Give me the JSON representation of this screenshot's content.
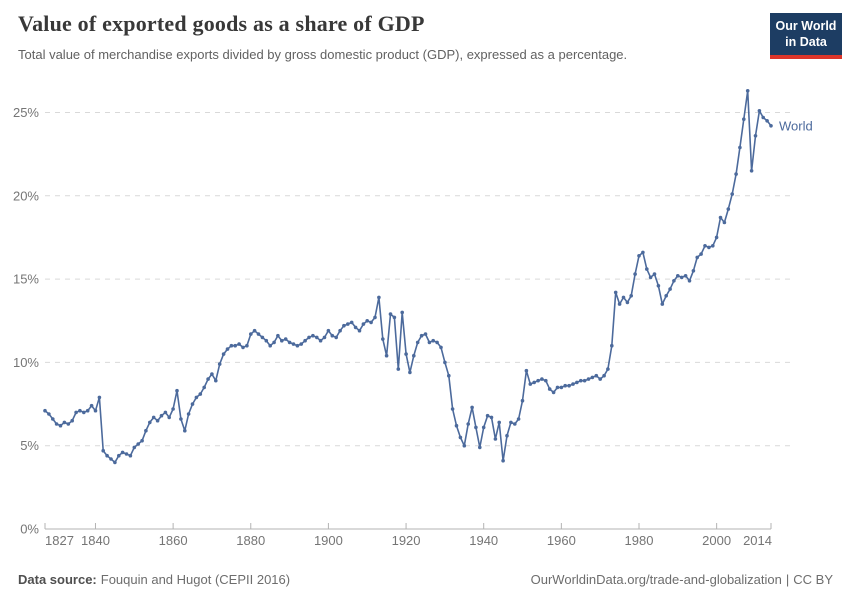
{
  "header": {
    "title": "Value of exported goods as a share of GDP",
    "subtitle": "Total value of merchandise exports divided by gross domestic product (GDP), expressed as a percentage."
  },
  "logo": {
    "line1": "Our World",
    "line2": "in Data",
    "bg_color": "#1d3d63",
    "accent_color": "#dd352a"
  },
  "chart_data": {
    "type": "line",
    "title": "Value of exported goods as a share of GDP",
    "series_label": "World",
    "unit": "%",
    "line_color": "#4c6a9c",
    "grid": "horizontal dashed",
    "legend_position": "end-of-line label",
    "xlim": [
      1827,
      2014
    ],
    "ylim": [
      0,
      27
    ],
    "x_ticks": [
      1827,
      1840,
      1860,
      1880,
      1900,
      1920,
      1940,
      1960,
      1980,
      2000,
      2014
    ],
    "x_tick_labels": [
      "1827",
      "1840",
      "1860",
      "1880",
      "1900",
      "1920",
      "1940",
      "1960",
      "1980",
      "2000",
      "2014"
    ],
    "y_ticks": [
      0,
      5,
      10,
      15,
      20,
      25
    ],
    "y_tick_labels": [
      "0%",
      "5%",
      "10%",
      "15%",
      "20%",
      "25%"
    ],
    "year_start": 1827,
    "years": [
      1827,
      1828,
      1829,
      1830,
      1831,
      1832,
      1833,
      1834,
      1835,
      1836,
      1837,
      1838,
      1839,
      1840,
      1841,
      1842,
      1843,
      1844,
      1845,
      1846,
      1847,
      1848,
      1849,
      1850,
      1851,
      1852,
      1853,
      1854,
      1855,
      1856,
      1857,
      1858,
      1859,
      1860,
      1861,
      1862,
      1863,
      1864,
      1865,
      1866,
      1867,
      1868,
      1869,
      1870,
      1871,
      1872,
      1873,
      1874,
      1875,
      1876,
      1877,
      1878,
      1879,
      1880,
      1881,
      1882,
      1883,
      1884,
      1885,
      1886,
      1887,
      1888,
      1889,
      1890,
      1891,
      1892,
      1893,
      1894,
      1895,
      1896,
      1897,
      1898,
      1899,
      1900,
      1901,
      1902,
      1903,
      1904,
      1905,
      1906,
      1907,
      1908,
      1909,
      1910,
      1911,
      1912,
      1913,
      1914,
      1915,
      1916,
      1917,
      1918,
      1919,
      1920,
      1921,
      1922,
      1923,
      1924,
      1925,
      1926,
      1927,
      1928,
      1929,
      1930,
      1931,
      1932,
      1933,
      1934,
      1935,
      1936,
      1937,
      1938,
      1939,
      1940,
      1941,
      1942,
      1943,
      1944,
      1945,
      1946,
      1947,
      1948,
      1949,
      1950,
      1951,
      1952,
      1953,
      1954,
      1955,
      1956,
      1957,
      1958,
      1959,
      1960,
      1961,
      1962,
      1963,
      1964,
      1965,
      1966,
      1967,
      1968,
      1969,
      1970,
      1971,
      1972,
      1973,
      1974,
      1975,
      1976,
      1977,
      1978,
      1979,
      1980,
      1981,
      1982,
      1983,
      1984,
      1985,
      1986,
      1987,
      1988,
      1989,
      1990,
      1991,
      1992,
      1993,
      1994,
      1995,
      1996,
      1997,
      1998,
      1999,
      2000,
      2001,
      2002,
      2003,
      2004,
      2005,
      2006,
      2007,
      2008,
      2009,
      2010,
      2011,
      2012,
      2013,
      2014
    ],
    "values": [
      7.1,
      6.9,
      6.6,
      6.3,
      6.2,
      6.4,
      6.3,
      6.5,
      7.0,
      7.1,
      7.0,
      7.1,
      7.4,
      7.1,
      7.9,
      4.7,
      4.4,
      4.2,
      4.0,
      4.4,
      4.6,
      4.5,
      4.4,
      4.9,
      5.1,
      5.3,
      5.9,
      6.4,
      6.7,
      6.5,
      6.8,
      7.0,
      6.7,
      7.2,
      8.3,
      6.6,
      5.9,
      6.9,
      7.5,
      7.9,
      8.1,
      8.5,
      9.0,
      9.3,
      8.9,
      9.9,
      10.5,
      10.8,
      11.0,
      11.0,
      11.1,
      10.9,
      11.0,
      11.7,
      11.9,
      11.7,
      11.5,
      11.3,
      11.0,
      11.2,
      11.6,
      11.3,
      11.4,
      11.2,
      11.1,
      11.0,
      11.1,
      11.3,
      11.5,
      11.6,
      11.5,
      11.3,
      11.5,
      11.9,
      11.6,
      11.5,
      11.9,
      12.2,
      12.3,
      12.4,
      12.1,
      11.9,
      12.3,
      12.5,
      12.4,
      12.7,
      13.9,
      11.4,
      10.4,
      12.9,
      12.7,
      9.6,
      13.0,
      10.5,
      9.4,
      10.4,
      11.2,
      11.6,
      11.7,
      11.2,
      11.3,
      11.2,
      10.9,
      10.0,
      9.2,
      7.2,
      6.2,
      5.5,
      5.0,
      6.3,
      7.3,
      6.1,
      4.9,
      6.1,
      6.8,
      6.7,
      5.4,
      6.4,
      4.1,
      5.6,
      6.4,
      6.3,
      6.6,
      7.7,
      9.5,
      8.7,
      8.8,
      8.9,
      9.0,
      8.9,
      8.4,
      8.2,
      8.5,
      8.5,
      8.6,
      8.6,
      8.7,
      8.8,
      8.9,
      8.9,
      9.0,
      9.1,
      9.2,
      9.0,
      9.2,
      9.6,
      11.0,
      14.2,
      13.5,
      13.9,
      13.6,
      14.0,
      15.3,
      16.4,
      16.6,
      15.6,
      15.1,
      15.3,
      14.6,
      13.5,
      14.0,
      14.4,
      14.9,
      15.2,
      15.1,
      15.2,
      14.9,
      15.5,
      16.3,
      16.5,
      17.0,
      16.9,
      17.0,
      17.5,
      18.7,
      18.4,
      19.2,
      20.1,
      21.3,
      22.9,
      24.6,
      26.3,
      21.5,
      23.6,
      25.1,
      24.7,
      24.5,
      24.2
    ],
    "colors": {
      "gridline": "#d9d9d9",
      "axis_line": "#b3b3b3",
      "tick_label": "#757575"
    }
  },
  "footer": {
    "source_label": "Data source:",
    "source_value": "Fouquin and Hugot (CEPII 2016)",
    "link": "OurWorldinData.org/trade-and-globalization",
    "separator": "|",
    "license": "CC BY"
  }
}
